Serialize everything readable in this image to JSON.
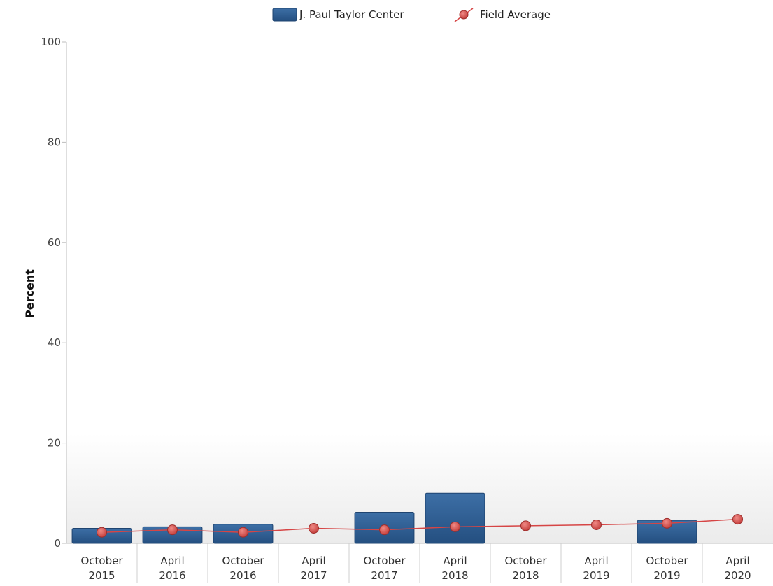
{
  "chart_data": {
    "type": "bar",
    "categories": [
      [
        "October",
        "2015"
      ],
      [
        "April",
        "2016"
      ],
      [
        "October",
        "2016"
      ],
      [
        "April",
        "2017"
      ],
      [
        "October",
        "2017"
      ],
      [
        "April",
        "2018"
      ],
      [
        "October",
        "2018"
      ],
      [
        "April",
        "2019"
      ],
      [
        "October",
        "2019"
      ],
      [
        "April",
        "2020"
      ]
    ],
    "series": [
      {
        "name": "J. Paul Taylor Center",
        "type": "bar",
        "values": [
          3.0,
          3.3,
          3.8,
          null,
          6.2,
          10.0,
          null,
          null,
          4.6,
          null
        ]
      },
      {
        "name": "Field Average",
        "type": "line",
        "values": [
          2.2,
          2.7,
          2.2,
          3.0,
          2.7,
          3.3,
          3.5,
          3.7,
          4.0,
          4.8
        ]
      }
    ],
    "ylabel": "Percent",
    "ylim": [
      0,
      100
    ],
    "yticks": [
      0,
      20,
      40,
      60,
      80,
      100
    ],
    "legend_position": "top",
    "grid": false
  },
  "colors": {
    "bar": "#2e5f94",
    "bar_highlight": "#4f7fb4",
    "line": "#d64545",
    "marker": "#c9413f"
  }
}
